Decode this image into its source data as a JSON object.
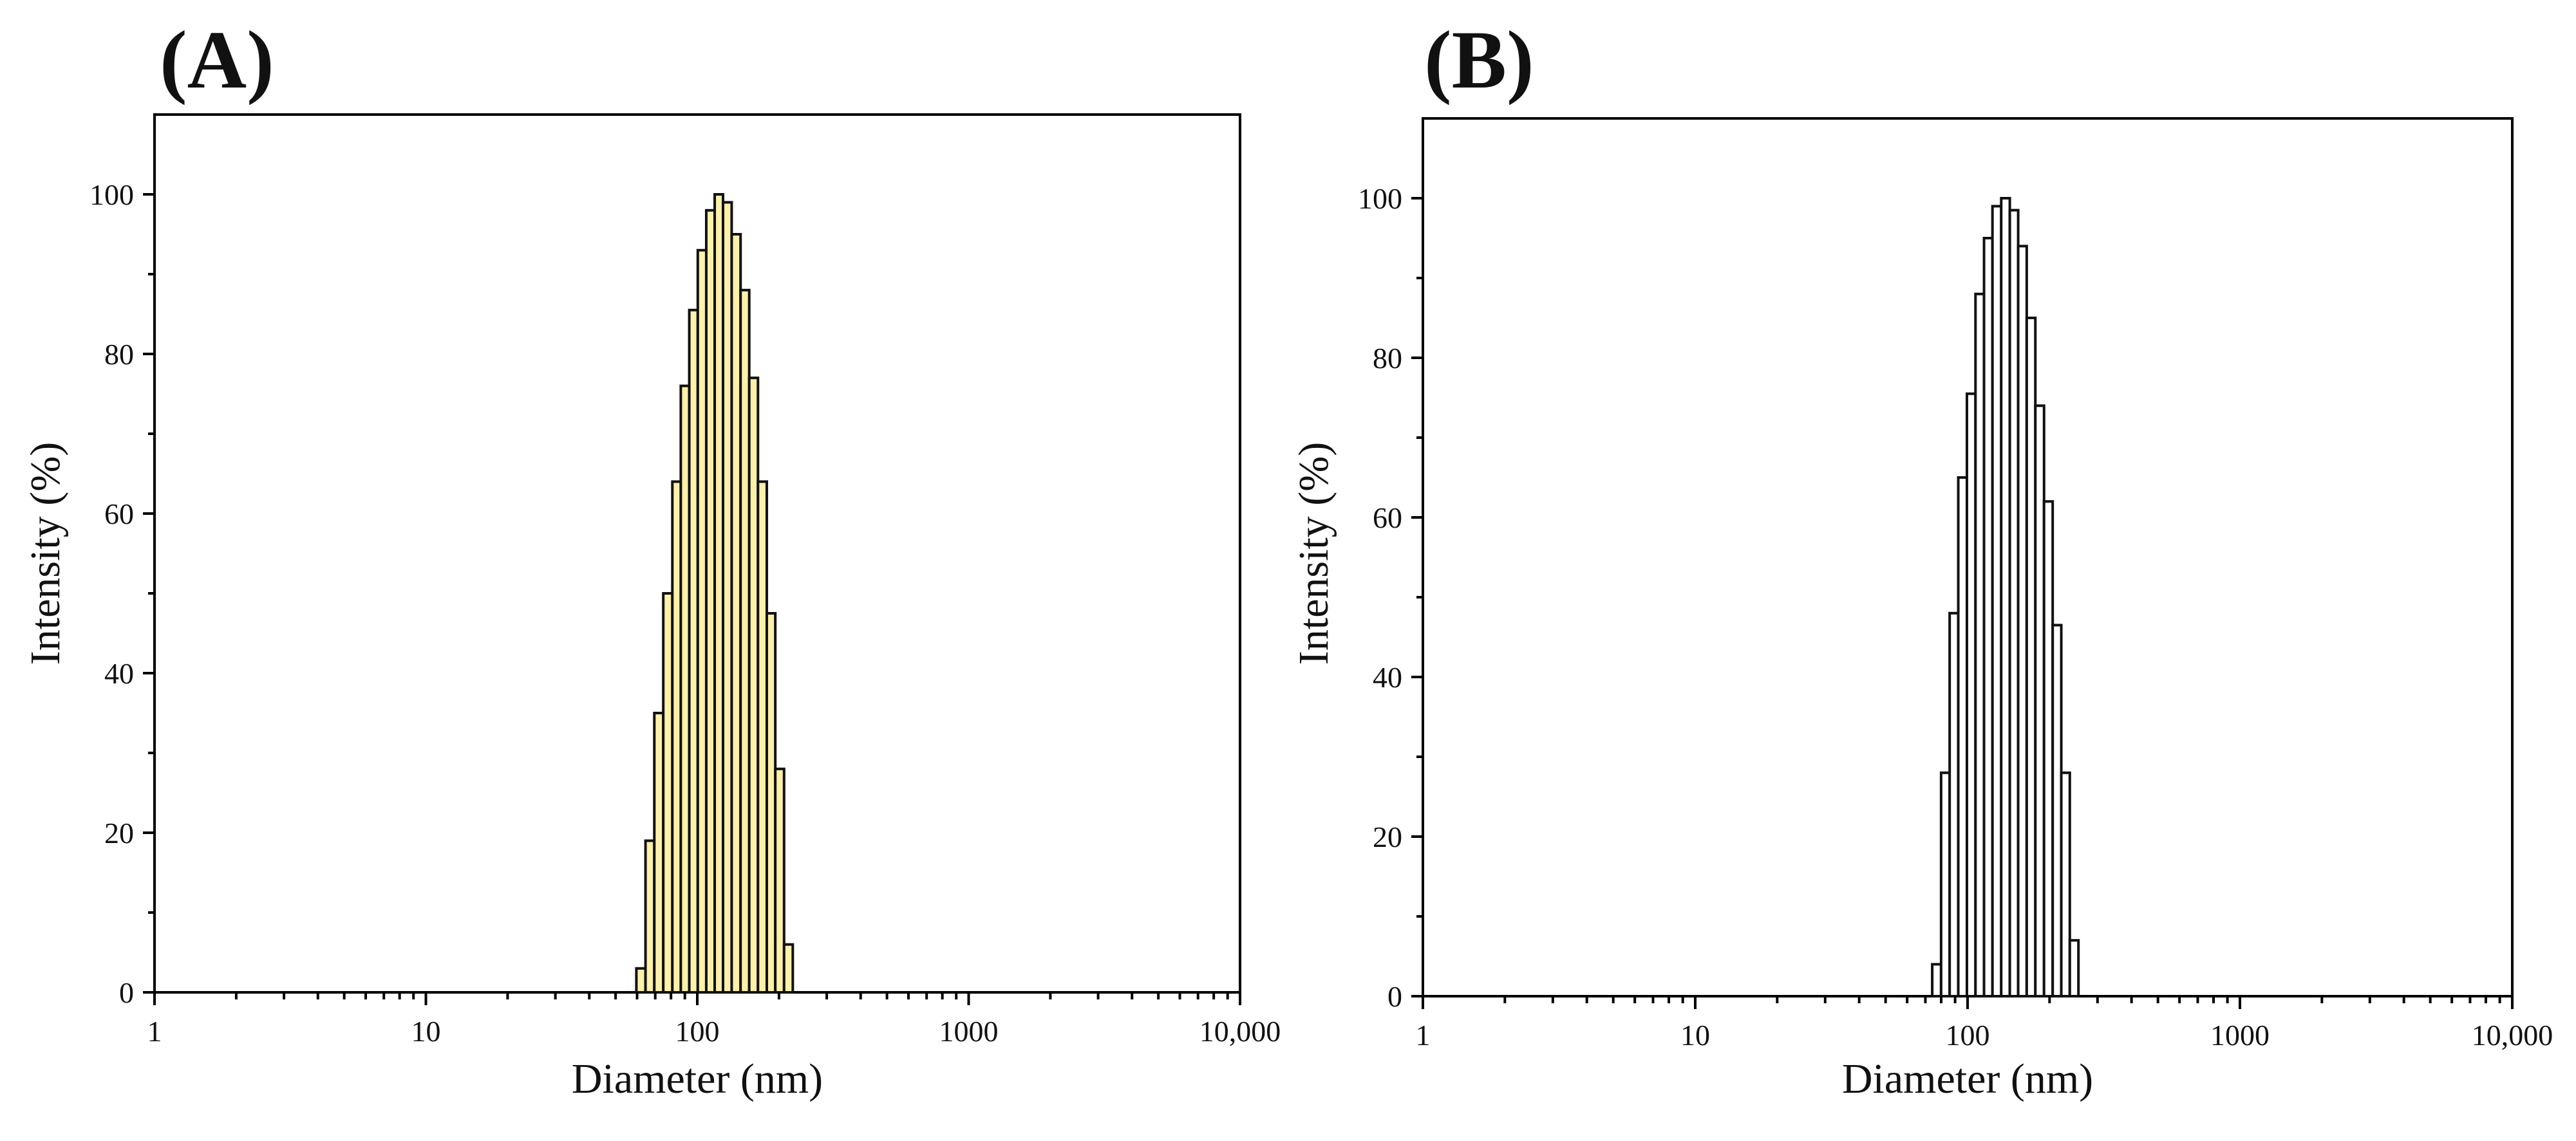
{
  "chart_data": [
    {
      "panel_label": "(A)",
      "type": "bar",
      "xlabel": "Diameter (nm)",
      "ylabel": "Intensity (%)",
      "xscale": "log",
      "xlim": [
        1,
        10000
      ],
      "ylim": [
        0,
        110
      ],
      "xticks": [
        1,
        10,
        100,
        1000,
        10000
      ],
      "xtick_labels": [
        "1",
        "10",
        "100",
        "1000",
        "10,000"
      ],
      "yticks": [
        0,
        20,
        40,
        60,
        80,
        100
      ],
      "ytick_labels": [
        "0",
        "20",
        "40",
        "60",
        "80",
        "100"
      ],
      "bar_color": "#fdf0a8",
      "bar_edge_color": "#111111",
      "x": [
        62,
        67,
        72,
        78,
        84,
        90,
        97,
        104,
        112,
        120,
        129,
        139,
        150,
        161,
        174,
        187,
        201,
        217,
        233
      ],
      "values": [
        3,
        19,
        35,
        50,
        64,
        76,
        85.5,
        93,
        98,
        100,
        99,
        95,
        88,
        77,
        64,
        47.5,
        28,
        6,
        0
      ]
    },
    {
      "panel_label": "(B)",
      "type": "bar",
      "xlabel": "Diameter (nm)",
      "ylabel": "Intensity (%)",
      "xscale": "log",
      "xlim": [
        1,
        10000
      ],
      "ylim": [
        0,
        110
      ],
      "xticks": [
        1,
        10,
        100,
        1000,
        10000
      ],
      "xtick_labels": [
        "1",
        "10",
        "100",
        "1000",
        "10,000"
      ],
      "yticks": [
        0,
        20,
        40,
        60,
        80,
        100
      ],
      "ytick_labels": [
        "0",
        "20",
        "40",
        "60",
        "80",
        "100"
      ],
      "bar_color": "#ffffff",
      "bar_edge_color": "#111111",
      "x": [
        77,
        83,
        89,
        96,
        103,
        111,
        119,
        128,
        138,
        148,
        159,
        171,
        184,
        198,
        213,
        229,
        246,
        265,
        285
      ],
      "values": [
        4,
        28,
        48,
        65,
        75.5,
        88,
        95,
        99,
        100,
        98.5,
        94,
        85,
        74,
        62,
        46.5,
        28,
        7,
        0,
        0
      ]
    }
  ]
}
